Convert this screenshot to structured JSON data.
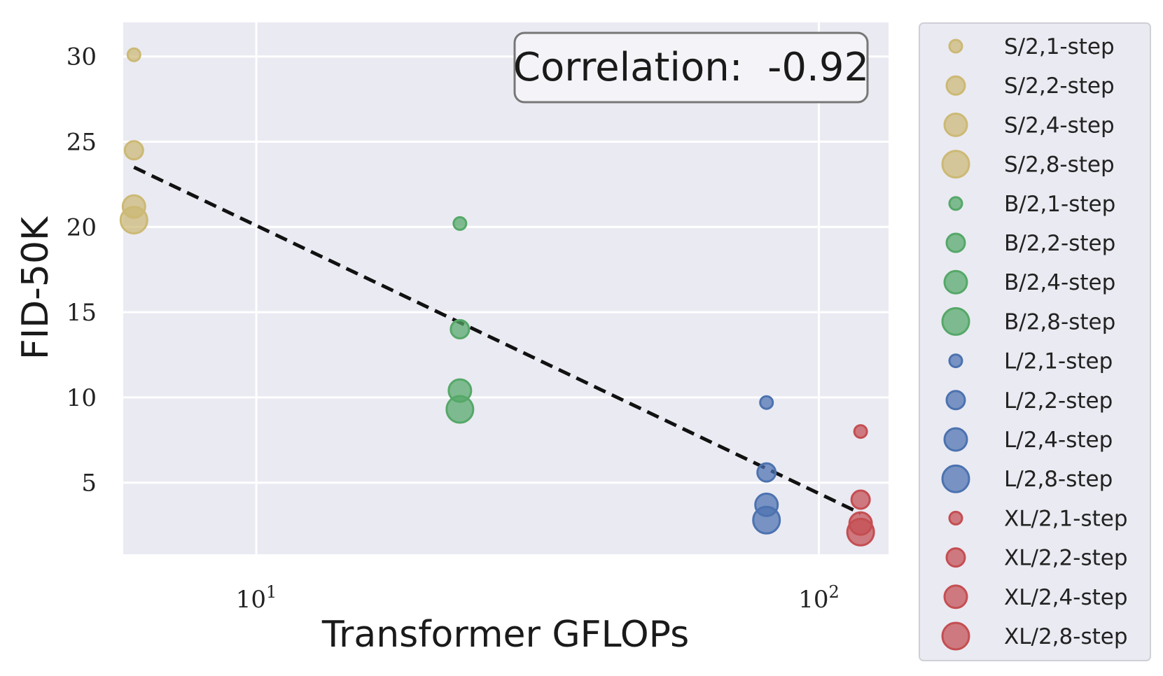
{
  "chart_data": {
    "type": "scatter",
    "title": "",
    "xlabel": "Transformer GFLOPs",
    "ylabel": "FID-50K",
    "x_scale": "log",
    "xlim": [
      5.8,
      133
    ],
    "ylim": [
      0.8,
      32.0
    ],
    "x_ticks": [
      {
        "value": 10,
        "label": "10",
        "exp": "1"
      },
      {
        "value": 100,
        "label": "10",
        "exp": "2"
      }
    ],
    "y_ticks": [
      5,
      10,
      15,
      20,
      25,
      30
    ],
    "grid": true,
    "legend_position": "outside-right",
    "annotation": "Correlation:  -0.92",
    "trend_line": {
      "x": [
        6.06,
        118.6
      ],
      "y": [
        23.5,
        3.2
      ],
      "style": "dashed"
    },
    "series": [
      {
        "name": "S/2,1-step",
        "model": "S",
        "steps": 1,
        "color": "#ccb974",
        "x": 6.06,
        "y": 30.1
      },
      {
        "name": "S/2,2-step",
        "model": "S",
        "steps": 2,
        "color": "#ccb974",
        "x": 6.06,
        "y": 24.5
      },
      {
        "name": "S/2,4-step",
        "model": "S",
        "steps": 4,
        "color": "#ccb974",
        "x": 6.06,
        "y": 21.2
      },
      {
        "name": "S/2,8-step",
        "model": "S",
        "steps": 8,
        "color": "#ccb974",
        "x": 6.06,
        "y": 20.4
      },
      {
        "name": "B/2,1-step",
        "model": "B",
        "steps": 1,
        "color": "#55a868",
        "x": 23.01,
        "y": 20.2
      },
      {
        "name": "B/2,2-step",
        "model": "B",
        "steps": 2,
        "color": "#55a868",
        "x": 23.01,
        "y": 14.0
      },
      {
        "name": "B/2,4-step",
        "model": "B",
        "steps": 4,
        "color": "#55a868",
        "x": 23.01,
        "y": 10.4
      },
      {
        "name": "B/2,8-step",
        "model": "B",
        "steps": 8,
        "color": "#55a868",
        "x": 23.01,
        "y": 9.3
      },
      {
        "name": "L/2,1-step",
        "model": "L",
        "steps": 1,
        "color": "#4c72b0",
        "x": 80.71,
        "y": 9.7
      },
      {
        "name": "L/2,2-step",
        "model": "L",
        "steps": 2,
        "color": "#4c72b0",
        "x": 80.71,
        "y": 5.6
      },
      {
        "name": "L/2,4-step",
        "model": "L",
        "steps": 4,
        "color": "#4c72b0",
        "x": 80.71,
        "y": 3.7
      },
      {
        "name": "L/2,8-step",
        "model": "L",
        "steps": 8,
        "color": "#4c72b0",
        "x": 80.71,
        "y": 2.8
      },
      {
        "name": "XL/2,1-step",
        "model": "XL",
        "steps": 1,
        "color": "#c44e52",
        "x": 118.64,
        "y": 8.0
      },
      {
        "name": "XL/2,2-step",
        "model": "XL",
        "steps": 2,
        "color": "#c44e52",
        "x": 118.64,
        "y": 4.0
      },
      {
        "name": "XL/2,4-step",
        "model": "XL",
        "steps": 4,
        "color": "#c44e52",
        "x": 118.64,
        "y": 2.6
      },
      {
        "name": "XL/2,8-step",
        "model": "XL",
        "steps": 8,
        "color": "#c44e52",
        "x": 118.64,
        "y": 2.1
      }
    ]
  }
}
